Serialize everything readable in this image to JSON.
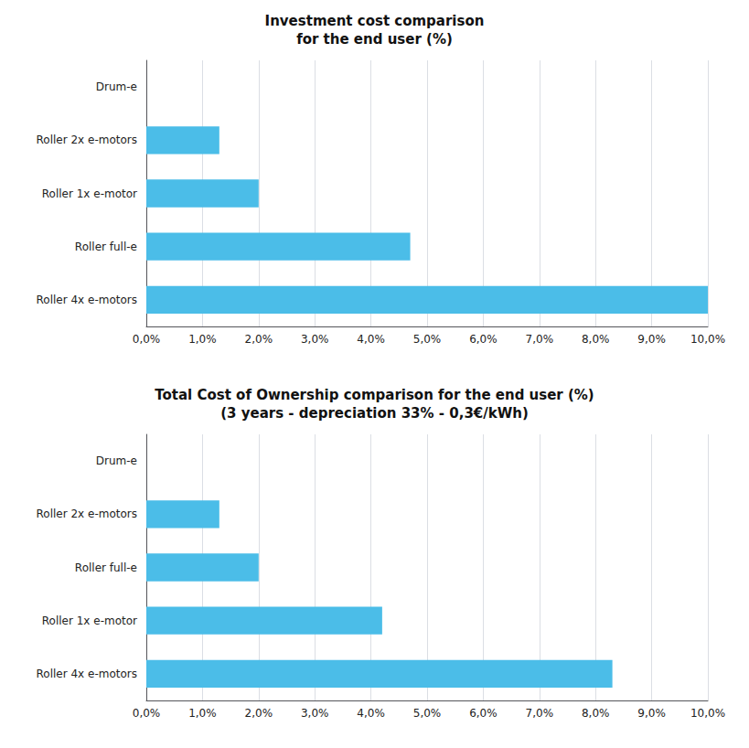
{
  "chart_data": [
    {
      "type": "bar",
      "orientation": "horizontal",
      "title": "Investment cost comparison\nfor the end user (%)",
      "categories": [
        "Drum-e",
        "Roller 2x e-motors",
        "Roller 1x e-motor",
        "Roller full-e",
        "Roller 4x e-motors"
      ],
      "values": [
        0.0,
        1.3,
        2.0,
        4.7,
        10.0
      ],
      "color": "#4BBDE8",
      "xlim": [
        0,
        10.0
      ],
      "xticks": [
        {
          "value": 0.0,
          "label": "0,0%"
        },
        {
          "value": 1.0,
          "label": "1,0%"
        },
        {
          "value": 2.0,
          "label": "2,0%"
        },
        {
          "value": 3.0,
          "label": "3,0%"
        },
        {
          "value": 4.0,
          "label": "4,0%"
        },
        {
          "value": 5.0,
          "label": "5,0%"
        },
        {
          "value": 6.0,
          "label": "6,0%"
        },
        {
          "value": 7.0,
          "label": "7,0%"
        },
        {
          "value": 8.0,
          "label": "8,0%"
        },
        {
          "value": 9.0,
          "label": "9,0%"
        },
        {
          "value": 10.0,
          "label": "10,0%"
        }
      ],
      "grid": true
    },
    {
      "type": "bar",
      "orientation": "horizontal",
      "title": "Total Cost of Ownership comparison for the end user (%)\n(3 years - depreciation 33% - 0,3€/kWh)",
      "categories": [
        "Drum-e",
        "Roller 2x e-motors",
        "Roller full-e",
        "Roller 1x e-motor",
        "Roller 4x e-motors"
      ],
      "values": [
        0.0,
        1.3,
        2.0,
        4.2,
        8.3
      ],
      "color": "#4BBDE8",
      "xlim": [
        0,
        10.0
      ],
      "xticks": [
        {
          "value": 0.0,
          "label": "0,0%"
        },
        {
          "value": 1.0,
          "label": "1,0%"
        },
        {
          "value": 2.0,
          "label": "2,0%"
        },
        {
          "value": 3.0,
          "label": "3,0%"
        },
        {
          "value": 4.0,
          "label": "4,0%"
        },
        {
          "value": 5.0,
          "label": "5,0%"
        },
        {
          "value": 6.0,
          "label": "6,0%"
        },
        {
          "value": 7.0,
          "label": "7,0%"
        },
        {
          "value": 8.0,
          "label": "8,0%"
        },
        {
          "value": 9.0,
          "label": "9,0%"
        },
        {
          "value": 10.0,
          "label": "10,0%"
        }
      ],
      "grid": true
    }
  ]
}
